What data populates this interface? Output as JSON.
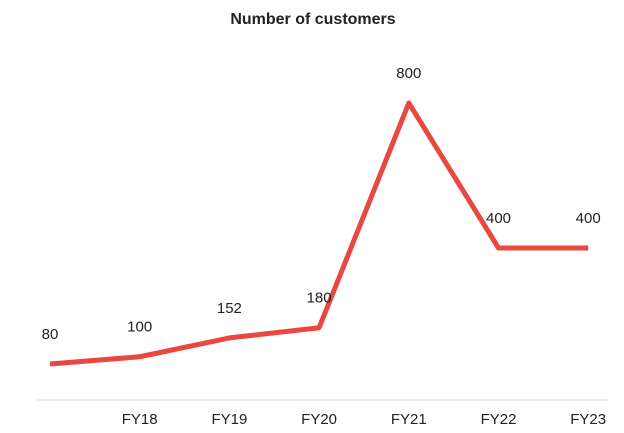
{
  "chart_data": {
    "type": "line",
    "title": "Number of customers",
    "categories": [
      null,
      "FY18",
      "FY19",
      "FY20",
      "FY21",
      "FY22",
      "FY23"
    ],
    "series": [
      {
        "name": "Number of customers",
        "color": "#e8483f",
        "values": [
          80,
          100,
          152,
          180,
          800,
          400,
          400
        ]
      }
    ]
  }
}
